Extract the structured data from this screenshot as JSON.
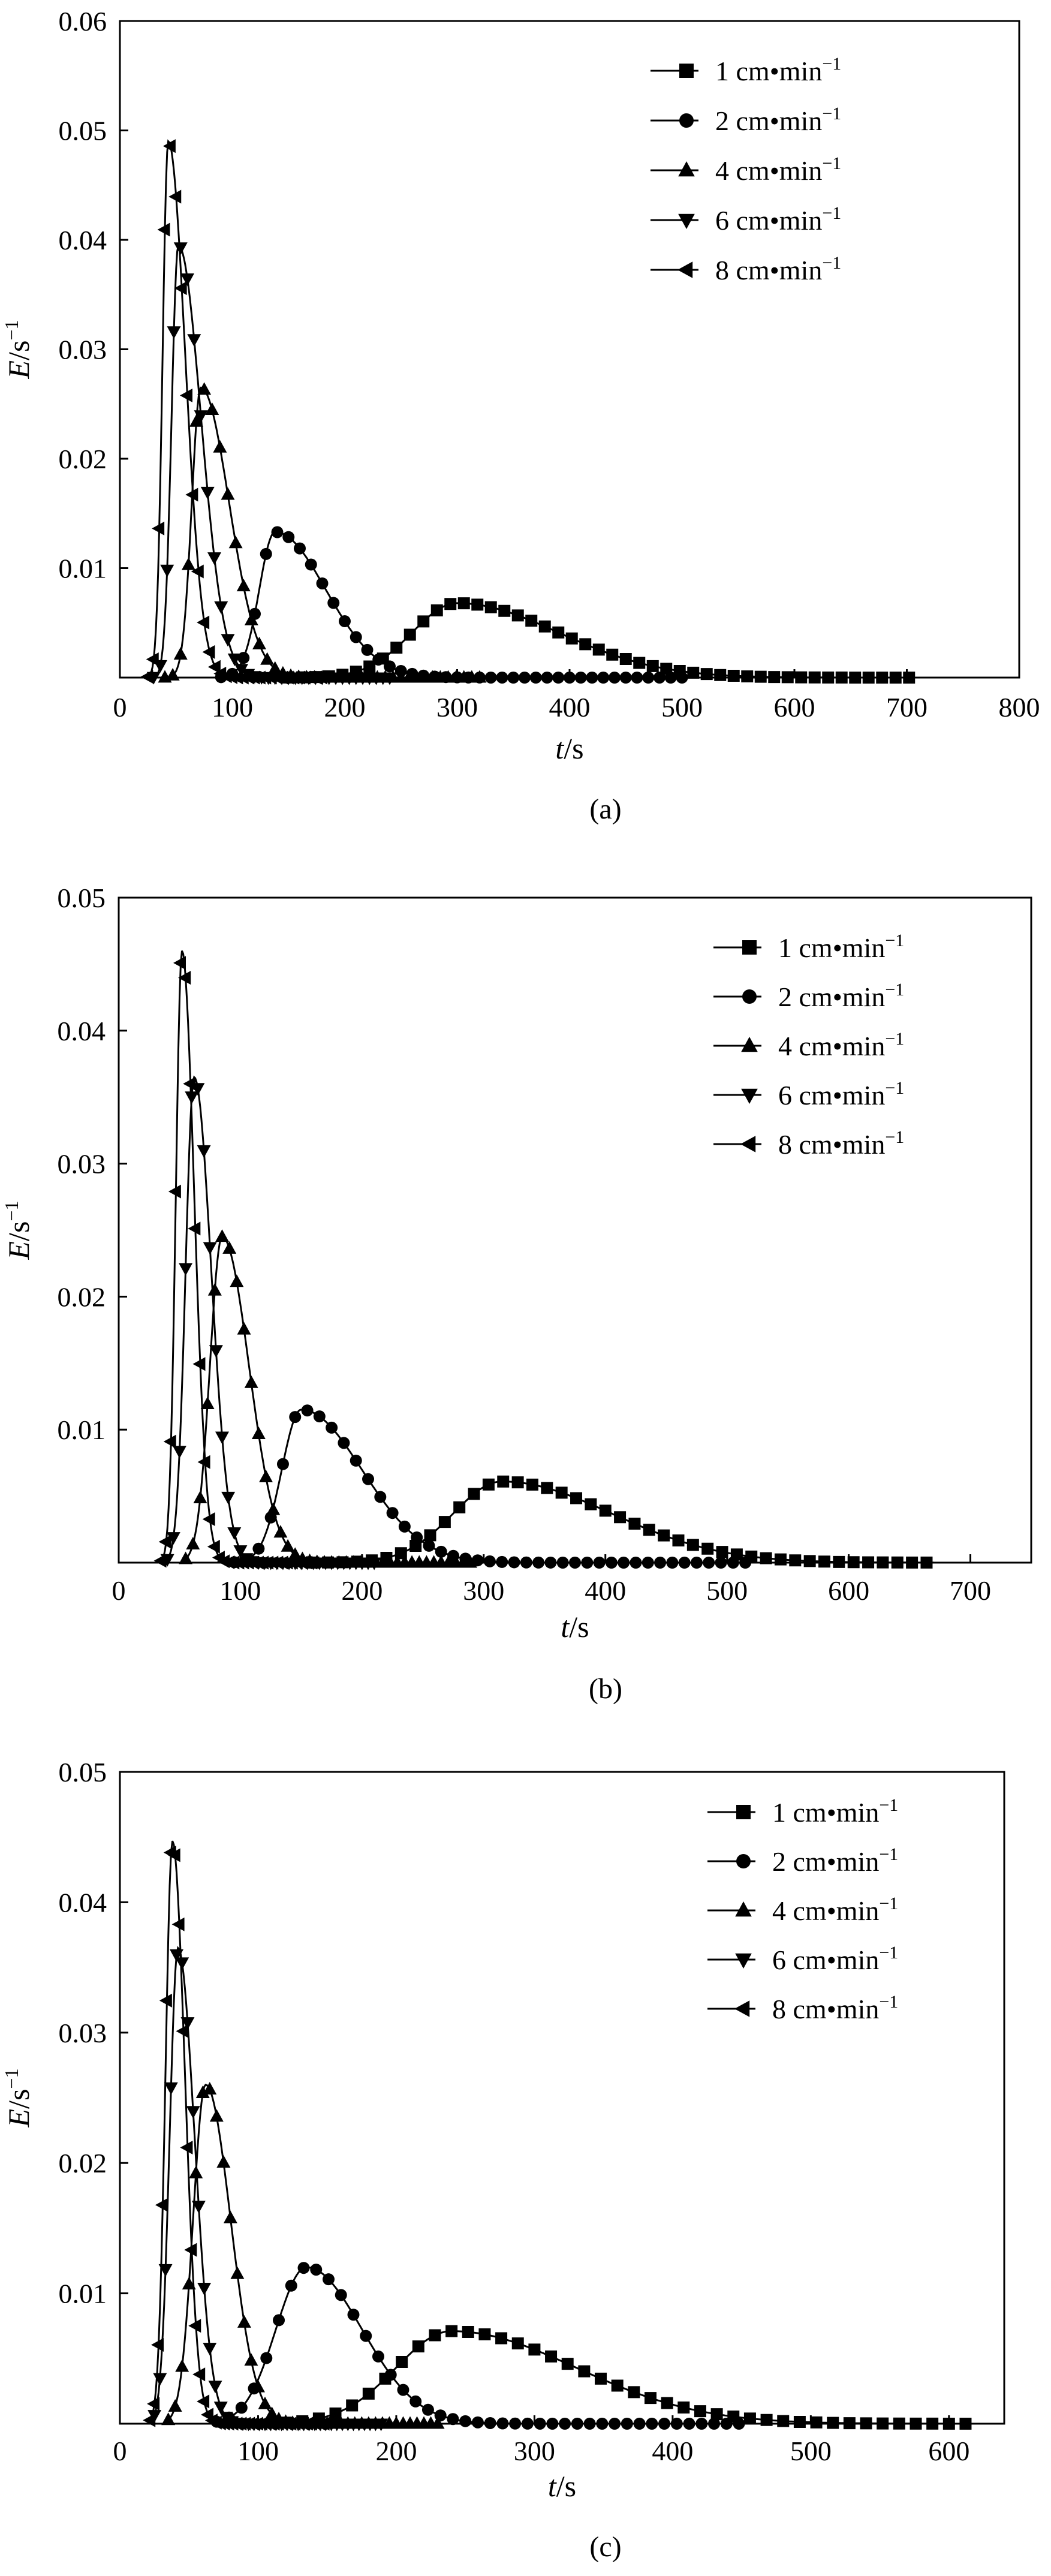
{
  "chart_data": [
    {
      "type": "line",
      "caption": "(a)",
      "xlabel_var": "t",
      "xlabel_unit": "/s",
      "ylabel_var": "E",
      "ylabel_unit": "/s",
      "ylabel_exp": "−1",
      "xlim": [
        0,
        800
      ],
      "ylim": [
        0,
        0.06
      ],
      "xticks": [
        0,
        100,
        200,
        300,
        400,
        500,
        600,
        700,
        800
      ],
      "xtick_labels": [
        "0",
        "100",
        "200",
        "300",
        "400",
        "500",
        "600",
        "700",
        "800"
      ],
      "yticks": [
        0.01,
        0.02,
        0.03,
        0.04,
        0.05,
        0.06
      ],
      "ytick_labels": [
        "0.01",
        "0.02",
        "0.03",
        "0.04",
        "0.05",
        "0.06"
      ],
      "legend_position": "top-right",
      "series": [
        {
          "name": "1 cm•min",
          "exp": "−1",
          "marker": "square",
          "peak_x": 300,
          "peak_y": 0.0068,
          "sigma_left": 40,
          "sigma_right": 90,
          "x_start": 150,
          "x_end": 710,
          "step": 12
        },
        {
          "name": "2 cm•min",
          "exp": "−1",
          "marker": "circle",
          "peak_x": 138,
          "peak_y": 0.0133,
          "sigma_left": 14,
          "sigma_right": 45,
          "x_start": 90,
          "x_end": 500,
          "step": 10
        },
        {
          "name": "4 cm•min",
          "exp": "−1",
          "marker": "triangle-up",
          "peak_x": 72,
          "peak_y": 0.0265,
          "sigma_left": 8,
          "sigma_right": 25,
          "x_start": 40,
          "x_end": 320,
          "step": 7
        },
        {
          "name": "6 cm•min",
          "exp": "−1",
          "marker": "triangle-down",
          "peak_x": 52,
          "peak_y": 0.0395,
          "sigma_left": 6,
          "sigma_right": 20,
          "x_start": 30,
          "x_end": 240,
          "step": 6
        },
        {
          "name": "8 cm•min",
          "exp": "−1",
          "marker": "triangle-left",
          "peak_x": 43,
          "peak_y": 0.049,
          "sigma_left": 5,
          "sigma_right": 15,
          "x_start": 25,
          "x_end": 180,
          "step": 5
        }
      ]
    },
    {
      "type": "line",
      "caption": "(b)",
      "xlabel_var": "t",
      "xlabel_unit": "/s",
      "ylabel_var": "E",
      "ylabel_unit": "/s",
      "ylabel_exp": "−1",
      "xlim": [
        0,
        750
      ],
      "ylim": [
        0,
        0.05
      ],
      "xticks": [
        0,
        100,
        200,
        300,
        400,
        500,
        600,
        700
      ],
      "xtick_labels": [
        "0",
        "100",
        "200",
        "300",
        "400",
        "500",
        "600",
        "700"
      ],
      "yticks": [
        0.01,
        0.02,
        0.03,
        0.04,
        0.05
      ],
      "ytick_labels": [
        "0.01",
        "0.02",
        "0.03",
        "0.04",
        "0.05"
      ],
      "legend_position": "top-right",
      "series": [
        {
          "name": "1 cm•min",
          "exp": "−1",
          "marker": "square",
          "peak_x": 315,
          "peak_y": 0.0061,
          "sigma_left": 40,
          "sigma_right": 90,
          "x_start": 160,
          "x_end": 670,
          "step": 12
        },
        {
          "name": "2 cm•min",
          "exp": "−1",
          "marker": "circle",
          "peak_x": 150,
          "peak_y": 0.0115,
          "sigma_left": 16,
          "sigma_right": 50,
          "x_start": 95,
          "x_end": 520,
          "step": 10
        },
        {
          "name": "4 cm•min",
          "exp": "−1",
          "marker": "triangle-up",
          "peak_x": 85,
          "peak_y": 0.0245,
          "sigma_left": 10,
          "sigma_right": 22,
          "x_start": 55,
          "x_end": 290,
          "step": 6
        },
        {
          "name": "6 cm•min",
          "exp": "−1",
          "marker": "triangle-down",
          "peak_x": 62,
          "peak_y": 0.0365,
          "sigma_left": 7,
          "sigma_right": 14,
          "x_start": 40,
          "x_end": 210,
          "step": 5
        },
        {
          "name": "8 cm•min",
          "exp": "−1",
          "marker": "triangle-left",
          "peak_x": 52,
          "peak_y": 0.046,
          "sigma_left": 5,
          "sigma_right": 10,
          "x_start": 35,
          "x_end": 160,
          "step": 4
        }
      ]
    },
    {
      "type": "line",
      "caption": "(c)",
      "xlabel_var": "t",
      "xlabel_unit": "/s",
      "ylabel_var": "E",
      "ylabel_unit": "/s",
      "ylabel_exp": "−1",
      "xlim": [
        0,
        640
      ],
      "ylim": [
        0,
        0.05
      ],
      "xticks": [
        0,
        100,
        200,
        300,
        400,
        500,
        600
      ],
      "xtick_labels": [
        "0",
        "100",
        "200",
        "300",
        "400",
        "500",
        "600"
      ],
      "yticks": [
        0.01,
        0.02,
        0.03,
        0.04,
        0.05
      ],
      "ytick_labels": [
        "0.01",
        "0.02",
        "0.03",
        "0.04",
        "0.05"
      ],
      "legend_position": "top-right",
      "series": [
        {
          "name": "1 cm•min",
          "exp": "−1",
          "marker": "square",
          "peak_x": 240,
          "peak_y": 0.0071,
          "sigma_left": 40,
          "sigma_right": 90,
          "x_start": 120,
          "x_end": 620,
          "step": 12
        },
        {
          "name": "2 cm•min",
          "exp": "−1",
          "marker": "circle",
          "peak_x": 135,
          "peak_y": 0.012,
          "sigma_left": 22,
          "sigma_right": 40,
          "x_start": 70,
          "x_end": 450,
          "step": 9
        },
        {
          "name": "4 cm•min",
          "exp": "−1",
          "marker": "triangle-up",
          "peak_x": 62,
          "peak_y": 0.026,
          "sigma_left": 9,
          "sigma_right": 18,
          "x_start": 35,
          "x_end": 230,
          "step": 5
        },
        {
          "name": "6 cm•min",
          "exp": "−1",
          "marker": "triangle-down",
          "peak_x": 42,
          "peak_y": 0.0365,
          "sigma_left": 6,
          "sigma_right": 12,
          "x_start": 25,
          "x_end": 190,
          "step": 4
        },
        {
          "name": "8 cm•min",
          "exp": "−1",
          "marker": "triangle-left",
          "peak_x": 38,
          "peak_y": 0.0447,
          "sigma_left": 5,
          "sigma_right": 9,
          "x_start": 22,
          "x_end": 150,
          "step": 3
        }
      ]
    }
  ]
}
